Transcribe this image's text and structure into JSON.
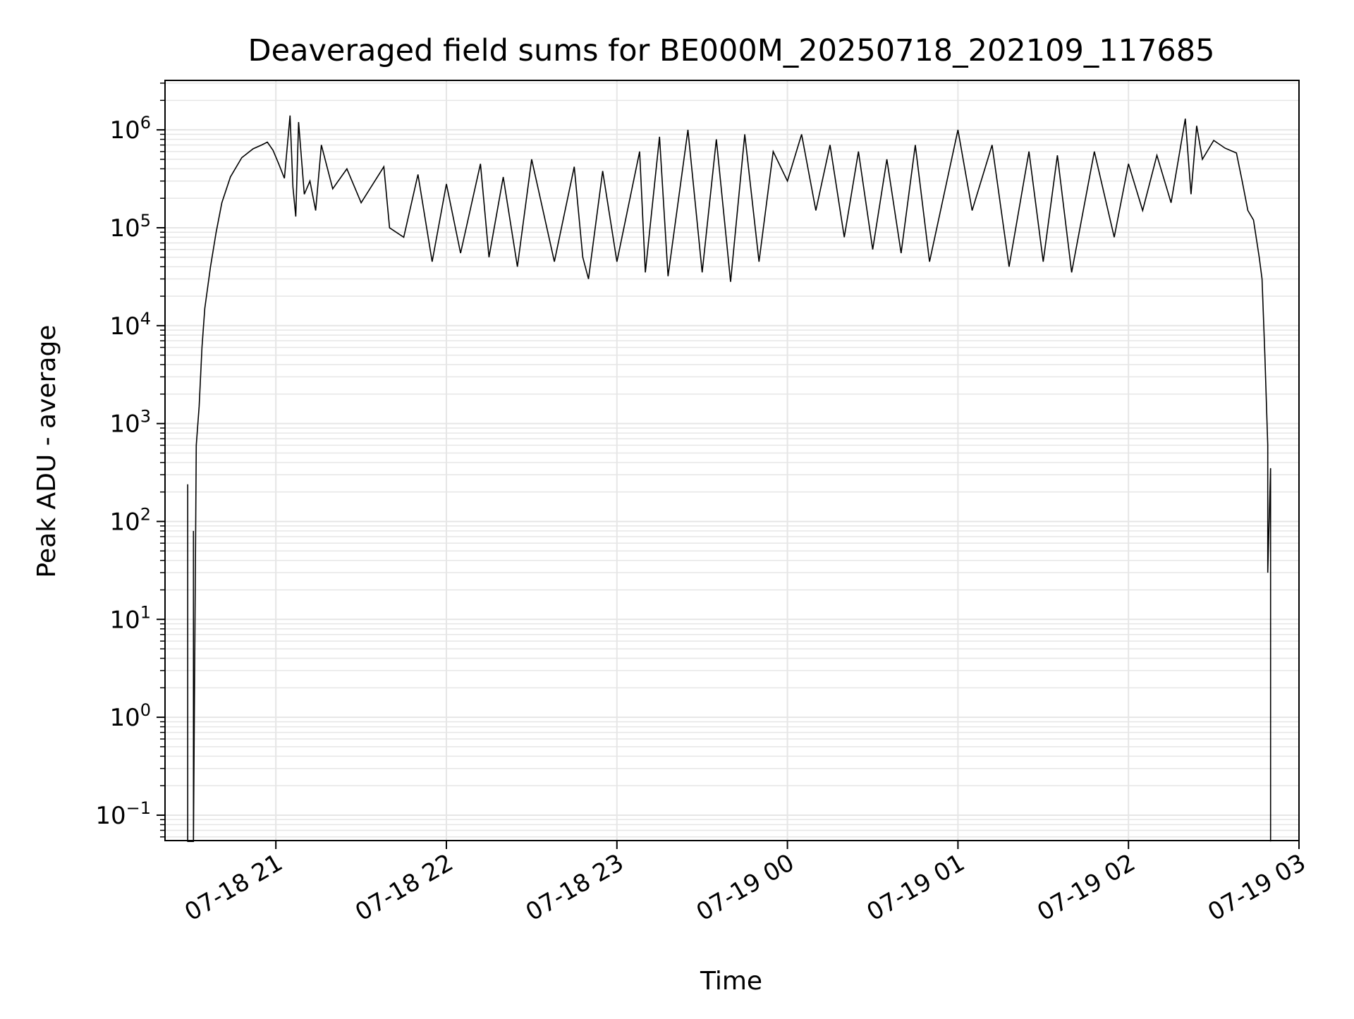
{
  "chart_data": {
    "type": "line",
    "title": "Deaveraged field sums for BE000M_20250718_202109_117685",
    "xlabel": "Time",
    "ylabel": "Peak ADU - average",
    "xscale": "time",
    "yscale": "log",
    "xlim": [
      "2025-07-18 20:21",
      "2025-07-19 03:00"
    ],
    "ylim": [
      0.055,
      3200000
    ],
    "grid": true,
    "line_color": "#000000",
    "grid_color": "#e6e6e6",
    "x_tick_labels": [
      "07-18 21",
      "07-18 22",
      "07-18 23",
      "07-19 00",
      "07-19 01",
      "07-19 02",
      "07-19 03"
    ],
    "x_tick_values": [
      "2025-07-18 21:00",
      "2025-07-18 22:00",
      "2025-07-18 23:00",
      "2025-07-19 00:00",
      "2025-07-19 01:00",
      "2025-07-19 02:00",
      "2025-07-19 03:00"
    ],
    "y_tick_exponents": [
      "−1",
      "0",
      "1",
      "2",
      "3",
      "4",
      "5",
      "6"
    ],
    "y_tick_values": [
      0.1,
      1,
      10,
      100,
      1000,
      10000,
      100000,
      1000000
    ],
    "series": [
      {
        "values": [
          [
            "2025-07-18 20:29",
            0.05
          ],
          [
            "2025-07-18 20:29",
            240
          ],
          [
            "2025-07-18 20:29",
            0.05
          ],
          [
            "2025-07-18 20:31",
            0.05
          ],
          [
            "2025-07-18 20:31",
            80
          ],
          [
            "2025-07-18 20:31",
            0.05
          ],
          [
            "2025-07-18 20:32",
            600
          ],
          [
            "2025-07-18 20:33",
            1500
          ],
          [
            "2025-07-18 20:34",
            6000
          ],
          [
            "2025-07-18 20:35",
            15000
          ],
          [
            "2025-07-18 20:37",
            40000
          ],
          [
            "2025-07-18 20:39",
            90000
          ],
          [
            "2025-07-18 20:41",
            180000
          ],
          [
            "2025-07-18 20:44",
            330000
          ],
          [
            "2025-07-18 20:48",
            520000
          ],
          [
            "2025-07-18 20:52",
            640000
          ],
          [
            "2025-07-18 20:55",
            700000
          ],
          [
            "2025-07-18 20:57",
            750000
          ],
          [
            "2025-07-18 20:59",
            620000
          ],
          [
            "2025-07-18 21:01",
            450000
          ],
          [
            "2025-07-18 21:03",
            320000
          ],
          [
            "2025-07-18 21:05",
            1400000
          ],
          [
            "2025-07-18 21:06",
            260000
          ],
          [
            "2025-07-18 21:07",
            130000
          ],
          [
            "2025-07-18 21:08",
            1200000
          ],
          [
            "2025-07-18 21:10",
            220000
          ],
          [
            "2025-07-18 21:12",
            300000
          ],
          [
            "2025-07-18 21:14",
            150000
          ],
          [
            "2025-07-18 21:16",
            700000
          ],
          [
            "2025-07-18 21:20",
            250000
          ],
          [
            "2025-07-18 21:25",
            400000
          ],
          [
            "2025-07-18 21:30",
            180000
          ],
          [
            "2025-07-18 21:38",
            420000
          ],
          [
            "2025-07-18 21:40",
            100000
          ],
          [
            "2025-07-18 21:45",
            80000
          ],
          [
            "2025-07-18 21:50",
            350000
          ],
          [
            "2025-07-18 21:55",
            45000
          ],
          [
            "2025-07-18 22:00",
            280000
          ],
          [
            "2025-07-18 22:05",
            55000
          ],
          [
            "2025-07-18 22:12",
            450000
          ],
          [
            "2025-07-18 22:15",
            50000
          ],
          [
            "2025-07-18 22:20",
            330000
          ],
          [
            "2025-07-18 22:25",
            40000
          ],
          [
            "2025-07-18 22:30",
            500000
          ],
          [
            "2025-07-18 22:38",
            45000
          ],
          [
            "2025-07-18 22:45",
            420000
          ],
          [
            "2025-07-18 22:48",
            50000
          ],
          [
            "2025-07-18 22:50",
            30000
          ],
          [
            "2025-07-18 22:55",
            380000
          ],
          [
            "2025-07-18 23:00",
            45000
          ],
          [
            "2025-07-18 23:08",
            600000
          ],
          [
            "2025-07-18 23:10",
            35000
          ],
          [
            "2025-07-18 23:15",
            850000
          ],
          [
            "2025-07-18 23:18",
            32000
          ],
          [
            "2025-07-18 23:25",
            1000000
          ],
          [
            "2025-07-18 23:30",
            35000
          ],
          [
            "2025-07-18 23:35",
            800000
          ],
          [
            "2025-07-18 23:40",
            28000
          ],
          [
            "2025-07-18 23:45",
            900000
          ],
          [
            "2025-07-18 23:50",
            45000
          ],
          [
            "2025-07-18 23:55",
            600000
          ],
          [
            "2025-07-19 00:00",
            300000
          ],
          [
            "2025-07-19 00:05",
            900000
          ],
          [
            "2025-07-19 00:10",
            150000
          ],
          [
            "2025-07-19 00:15",
            700000
          ],
          [
            "2025-07-19 00:20",
            80000
          ],
          [
            "2025-07-19 00:25",
            600000
          ],
          [
            "2025-07-19 00:30",
            60000
          ],
          [
            "2025-07-19 00:35",
            500000
          ],
          [
            "2025-07-19 00:40",
            55000
          ],
          [
            "2025-07-19 00:45",
            700000
          ],
          [
            "2025-07-19 00:50",
            45000
          ],
          [
            "2025-07-19 01:00",
            1000000
          ],
          [
            "2025-07-19 01:05",
            150000
          ],
          [
            "2025-07-19 01:12",
            700000
          ],
          [
            "2025-07-19 01:18",
            40000
          ],
          [
            "2025-07-19 01:25",
            600000
          ],
          [
            "2025-07-19 01:30",
            45000
          ],
          [
            "2025-07-19 01:35",
            550000
          ],
          [
            "2025-07-19 01:40",
            35000
          ],
          [
            "2025-07-19 01:48",
            600000
          ],
          [
            "2025-07-19 01:55",
            80000
          ],
          [
            "2025-07-19 02:00",
            450000
          ],
          [
            "2025-07-19 02:05",
            150000
          ],
          [
            "2025-07-19 02:10",
            550000
          ],
          [
            "2025-07-19 02:15",
            180000
          ],
          [
            "2025-07-19 02:20",
            1300000
          ],
          [
            "2025-07-19 02:22",
            220000
          ],
          [
            "2025-07-19 02:24",
            1100000
          ],
          [
            "2025-07-19 02:26",
            500000
          ],
          [
            "2025-07-19 02:30",
            780000
          ],
          [
            "2025-07-19 02:34",
            650000
          ],
          [
            "2025-07-19 02:38",
            580000
          ],
          [
            "2025-07-19 02:40",
            300000
          ],
          [
            "2025-07-19 02:42",
            150000
          ],
          [
            "2025-07-19 02:44",
            120000
          ],
          [
            "2025-07-19 02:46",
            50000
          ],
          [
            "2025-07-19 02:47",
            30000
          ],
          [
            "2025-07-19 02:48",
            5000
          ],
          [
            "2025-07-19 02:49",
            600
          ],
          [
            "2025-07-19 02:49",
            30
          ],
          [
            "2025-07-19 02:50",
            350
          ],
          [
            "2025-07-19 02:50",
            0.13
          ],
          [
            "2025-07-19 02:50",
            0.05
          ]
        ]
      }
    ]
  }
}
